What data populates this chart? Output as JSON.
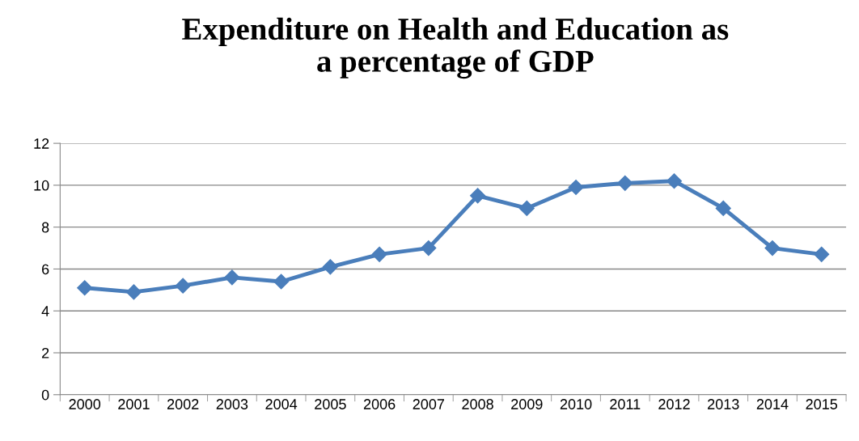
{
  "chart_data": {
    "type": "line",
    "title": "Expenditure on Health and Education as\na percentage of GDP",
    "categories": [
      "2000",
      "2001",
      "2002",
      "2003",
      "2004",
      "2005",
      "2006",
      "2007",
      "2008",
      "2009",
      "2010",
      "2011",
      "2012",
      "2013",
      "2014",
      "2015"
    ],
    "series": [
      {
        "color": "#4a7ebb",
        "values": [
          5.1,
          4.9,
          5.2,
          5.6,
          5.4,
          6.1,
          6.7,
          7.0,
          9.5,
          8.9,
          9.9,
          10.1,
          10.2,
          8.9,
          7.0,
          6.7
        ]
      }
    ],
    "ylim": [
      0,
      12
    ],
    "yticks": [
      0,
      2,
      4,
      6,
      8,
      10,
      12
    ],
    "grid": "y",
    "marker": "diamond",
    "line_style": "solid",
    "legend": false
  }
}
